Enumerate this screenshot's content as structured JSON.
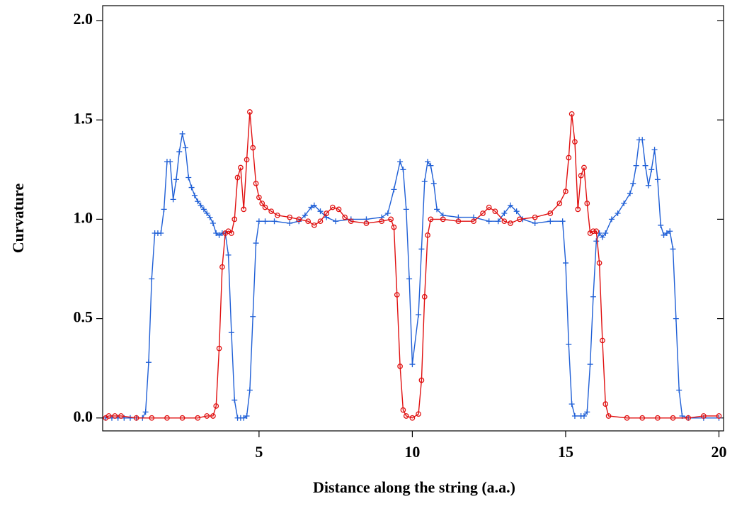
{
  "chart_data": {
    "type": "line",
    "x_label": "Distance along the string (a.a.)",
    "y_label": "Curvature",
    "xlim": [
      -0.1,
      20.15
    ],
    "ylim": [
      -0.065,
      2.075
    ],
    "xticks": [
      5,
      10,
      15,
      20
    ],
    "yticks": [
      {
        "value": 0,
        "label": "0.0"
      },
      {
        "value": 0.5,
        "label": "0.5"
      },
      {
        "value": 1,
        "label": "1.0"
      },
      {
        "value": 1.5,
        "label": "1.5"
      },
      {
        "value": 2,
        "label": "2.0"
      }
    ],
    "series": [
      {
        "color": "#1f5fd6",
        "marker": "plus",
        "x": [
          0,
          0.2,
          0.4,
          0.6,
          0.8,
          1.0,
          1.2,
          1.3,
          1.4,
          1.5,
          1.6,
          1.7,
          1.8,
          1.9,
          2.0,
          2.1,
          2.2,
          2.3,
          2.4,
          2.5,
          2.6,
          2.7,
          2.8,
          2.9,
          3.0,
          3.1,
          3.2,
          3.3,
          3.4,
          3.5,
          3.6,
          3.7,
          3.8,
          3.9,
          4.0,
          4.1,
          4.2,
          4.3,
          4.4,
          4.5,
          4.6,
          4.7,
          4.8,
          4.9,
          5.0,
          5.2,
          5.5,
          6.0,
          6.3,
          6.5,
          6.7,
          6.8,
          7.0,
          7.2,
          7.5,
          8.0,
          8.5,
          9.0,
          9.2,
          9.4,
          9.6,
          9.7,
          9.8,
          9.9,
          10.0,
          10.2,
          10.3,
          10.4,
          10.5,
          10.6,
          10.7,
          10.8,
          11.0,
          11.5,
          12.0,
          12.5,
          12.8,
          13.0,
          13.2,
          13.4,
          13.6,
          14.0,
          14.5,
          14.9,
          15.0,
          15.1,
          15.2,
          15.3,
          15.5,
          15.6,
          15.7,
          15.8,
          15.9,
          16.0,
          16.1,
          16.2,
          16.3,
          16.5,
          16.7,
          16.9,
          17.1,
          17.2,
          17.3,
          17.4,
          17.5,
          17.6,
          17.7,
          17.8,
          17.9,
          18.0,
          18.1,
          18.2,
          18.3,
          18.4,
          18.5,
          18.6,
          18.7,
          18.8,
          19.0,
          19.5,
          20.0
        ],
        "values": [
          0,
          0,
          0,
          0,
          0,
          0,
          0,
          0.03,
          0.28,
          0.7,
          0.93,
          0.93,
          0.93,
          1.05,
          1.29,
          1.29,
          1.1,
          1.2,
          1.34,
          1.43,
          1.36,
          1.21,
          1.16,
          1.12,
          1.09,
          1.07,
          1.05,
          1.03,
          1.01,
          0.98,
          0.93,
          0.92,
          0.93,
          0.93,
          0.82,
          0.43,
          0.09,
          0,
          0,
          0,
          0.01,
          0.14,
          0.51,
          0.88,
          0.99,
          0.99,
          0.99,
          0.98,
          0.99,
          1.02,
          1.06,
          1.07,
          1.04,
          1.01,
          0.99,
          1.0,
          1.0,
          1.01,
          1.03,
          1.15,
          1.29,
          1.25,
          1.05,
          0.7,
          0.27,
          0.52,
          0.85,
          1.19,
          1.29,
          1.27,
          1.18,
          1.05,
          1.02,
          1.01,
          1.01,
          0.99,
          0.99,
          1.03,
          1.07,
          1.04,
          1.0,
          0.98,
          0.99,
          0.99,
          0.78,
          0.37,
          0.07,
          0.01,
          0.01,
          0.01,
          0.03,
          0.27,
          0.61,
          0.89,
          0.93,
          0.91,
          0.93,
          1.0,
          1.03,
          1.08,
          1.13,
          1.18,
          1.27,
          1.4,
          1.4,
          1.27,
          1.17,
          1.25,
          1.35,
          1.2,
          0.97,
          0.92,
          0.93,
          0.94,
          0.85,
          0.5,
          0.14,
          0.01,
          0,
          0,
          0
        ]
      },
      {
        "color": "#e01010",
        "marker": "circle",
        "x": [
          0,
          0.1,
          0.3,
          0.5,
          1.0,
          1.5,
          2.0,
          2.5,
          3.0,
          3.3,
          3.5,
          3.6,
          3.7,
          3.8,
          3.9,
          4.0,
          4.1,
          4.2,
          4.3,
          4.4,
          4.5,
          4.6,
          4.7,
          4.8,
          4.9,
          5.0,
          5.1,
          5.2,
          5.4,
          5.6,
          6.0,
          6.3,
          6.6,
          6.8,
          7.0,
          7.2,
          7.4,
          7.6,
          7.8,
          8.0,
          8.5,
          9.0,
          9.3,
          9.4,
          9.5,
          9.6,
          9.7,
          9.8,
          10.0,
          10.2,
          10.3,
          10.4,
          10.5,
          10.6,
          11.0,
          11.5,
          12.0,
          12.3,
          12.5,
          12.7,
          13.0,
          13.2,
          13.5,
          14.0,
          14.5,
          14.8,
          15.0,
          15.1,
          15.2,
          15.3,
          15.4,
          15.5,
          15.6,
          15.7,
          15.8,
          15.9,
          16.0,
          16.1,
          16.2,
          16.3,
          16.4,
          17.0,
          17.5,
          18.0,
          18.5,
          19.0,
          19.5,
          20.0
        ],
        "values": [
          0,
          0.01,
          0.01,
          0.01,
          0,
          0,
          0,
          0,
          0,
          0.01,
          0.01,
          0.06,
          0.35,
          0.76,
          0.93,
          0.94,
          0.93,
          1.0,
          1.21,
          1.26,
          1.05,
          1.3,
          1.54,
          1.36,
          1.18,
          1.11,
          1.08,
          1.06,
          1.04,
          1.02,
          1.01,
          1.0,
          0.99,
          0.97,
          0.99,
          1.03,
          1.06,
          1.05,
          1.01,
          0.99,
          0.98,
          0.99,
          1.0,
          0.96,
          0.62,
          0.26,
          0.04,
          0.01,
          0,
          0.02,
          0.19,
          0.61,
          0.92,
          1.0,
          1.0,
          0.99,
          0.99,
          1.03,
          1.06,
          1.04,
          0.99,
          0.98,
          1.0,
          1.01,
          1.03,
          1.08,
          1.14,
          1.31,
          1.53,
          1.39,
          1.05,
          1.22,
          1.26,
          1.08,
          0.93,
          0.94,
          0.94,
          0.78,
          0.39,
          0.07,
          0.01,
          0,
          0,
          0,
          0,
          0,
          0.01,
          0.01
        ]
      }
    ]
  }
}
